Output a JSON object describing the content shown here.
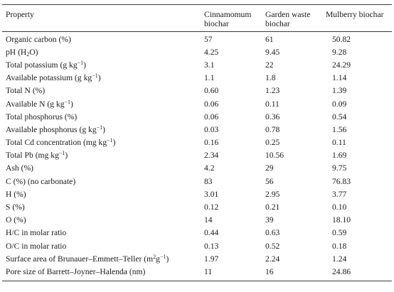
{
  "table": {
    "headers": [
      "Property",
      "Cinnamomum biochar",
      "Garden waste biochar",
      "Mulberry biochar"
    ],
    "rows": [
      {
        "property": [
          {
            "t": "Organic carbon (%)"
          }
        ],
        "values": [
          "57",
          "61",
          "50.82"
        ]
      },
      {
        "property": [
          {
            "t": "pH (H"
          },
          {
            "sub": "2"
          },
          {
            "t": "O)"
          }
        ],
        "values": [
          "4.25",
          "9.45",
          "9.28"
        ]
      },
      {
        "property": [
          {
            "t": "Total potassium (g kg"
          },
          {
            "sup": "−1"
          },
          {
            "t": ")"
          }
        ],
        "values": [
          "3.1",
          "22",
          "24.29"
        ]
      },
      {
        "property": [
          {
            "t": "Available potassium (g kg"
          },
          {
            "sup": "−1"
          },
          {
            "t": ")"
          }
        ],
        "values": [
          "1.1",
          "1.8",
          "1.14"
        ]
      },
      {
        "property": [
          {
            "t": "Total N (%)"
          }
        ],
        "values": [
          "0.60",
          "1.23",
          "1.39"
        ]
      },
      {
        "property": [
          {
            "t": "Available N (g kg"
          },
          {
            "sup": "−1"
          },
          {
            "t": ")"
          }
        ],
        "values": [
          "0.06",
          "0.11",
          "0.09"
        ]
      },
      {
        "property": [
          {
            "t": "Total phosphorus (%)"
          }
        ],
        "values": [
          "0.06",
          "0.36",
          "0.54"
        ]
      },
      {
        "property": [
          {
            "t": "Available phosphorus (g kg"
          },
          {
            "sup": "−1"
          },
          {
            "t": ")"
          }
        ],
        "values": [
          "0.03",
          "0.78",
          "1.56"
        ]
      },
      {
        "property": [
          {
            "t": "Total Cd concentration (mg kg"
          },
          {
            "sup": "−1"
          },
          {
            "t": ")"
          }
        ],
        "values": [
          "0.16",
          "0.25",
          "0.11"
        ]
      },
      {
        "property": [
          {
            "t": "Total Pb (mg kg"
          },
          {
            "sup": "−1"
          },
          {
            "t": ")"
          }
        ],
        "values": [
          "2.34",
          "10.56",
          "1.69"
        ]
      },
      {
        "property": [
          {
            "t": "Ash (%)"
          }
        ],
        "values": [
          "4.2",
          "29",
          "9.75"
        ]
      },
      {
        "property": [
          {
            "t": "C (%) (no carbonate)"
          }
        ],
        "values": [
          "83",
          "56",
          "76.83"
        ]
      },
      {
        "property": [
          {
            "t": "H (%)"
          }
        ],
        "values": [
          "3.01",
          "2.95",
          "3.77"
        ]
      },
      {
        "property": [
          {
            "t": "S (%)"
          }
        ],
        "values": [
          "0.12",
          "0.21",
          "0.10"
        ]
      },
      {
        "property": [
          {
            "t": "O (%)"
          }
        ],
        "values": [
          "14",
          "39",
          "18.10"
        ]
      },
      {
        "property": [
          {
            "t": "H/C in molar ratio"
          }
        ],
        "values": [
          "0.44",
          "0.63",
          "0.59"
        ]
      },
      {
        "property": [
          {
            "t": "O/C in molar ratio"
          }
        ],
        "values": [
          "0.13",
          "0.52",
          "0.18"
        ]
      },
      {
        "property": [
          {
            "t": "Surface area of Brunauer–Emmett–Teller (m"
          },
          {
            "sup": "2"
          },
          {
            "t": "g"
          },
          {
            "sup": "−1"
          },
          {
            "t": ")"
          }
        ],
        "values": [
          "1.97",
          "2.24",
          "1.24"
        ]
      },
      {
        "property": [
          {
            "t": "Pore size of Barrett–Joyner–Halenda (nm)"
          }
        ],
        "values": [
          "11",
          "16",
          "24.86"
        ]
      }
    ]
  }
}
